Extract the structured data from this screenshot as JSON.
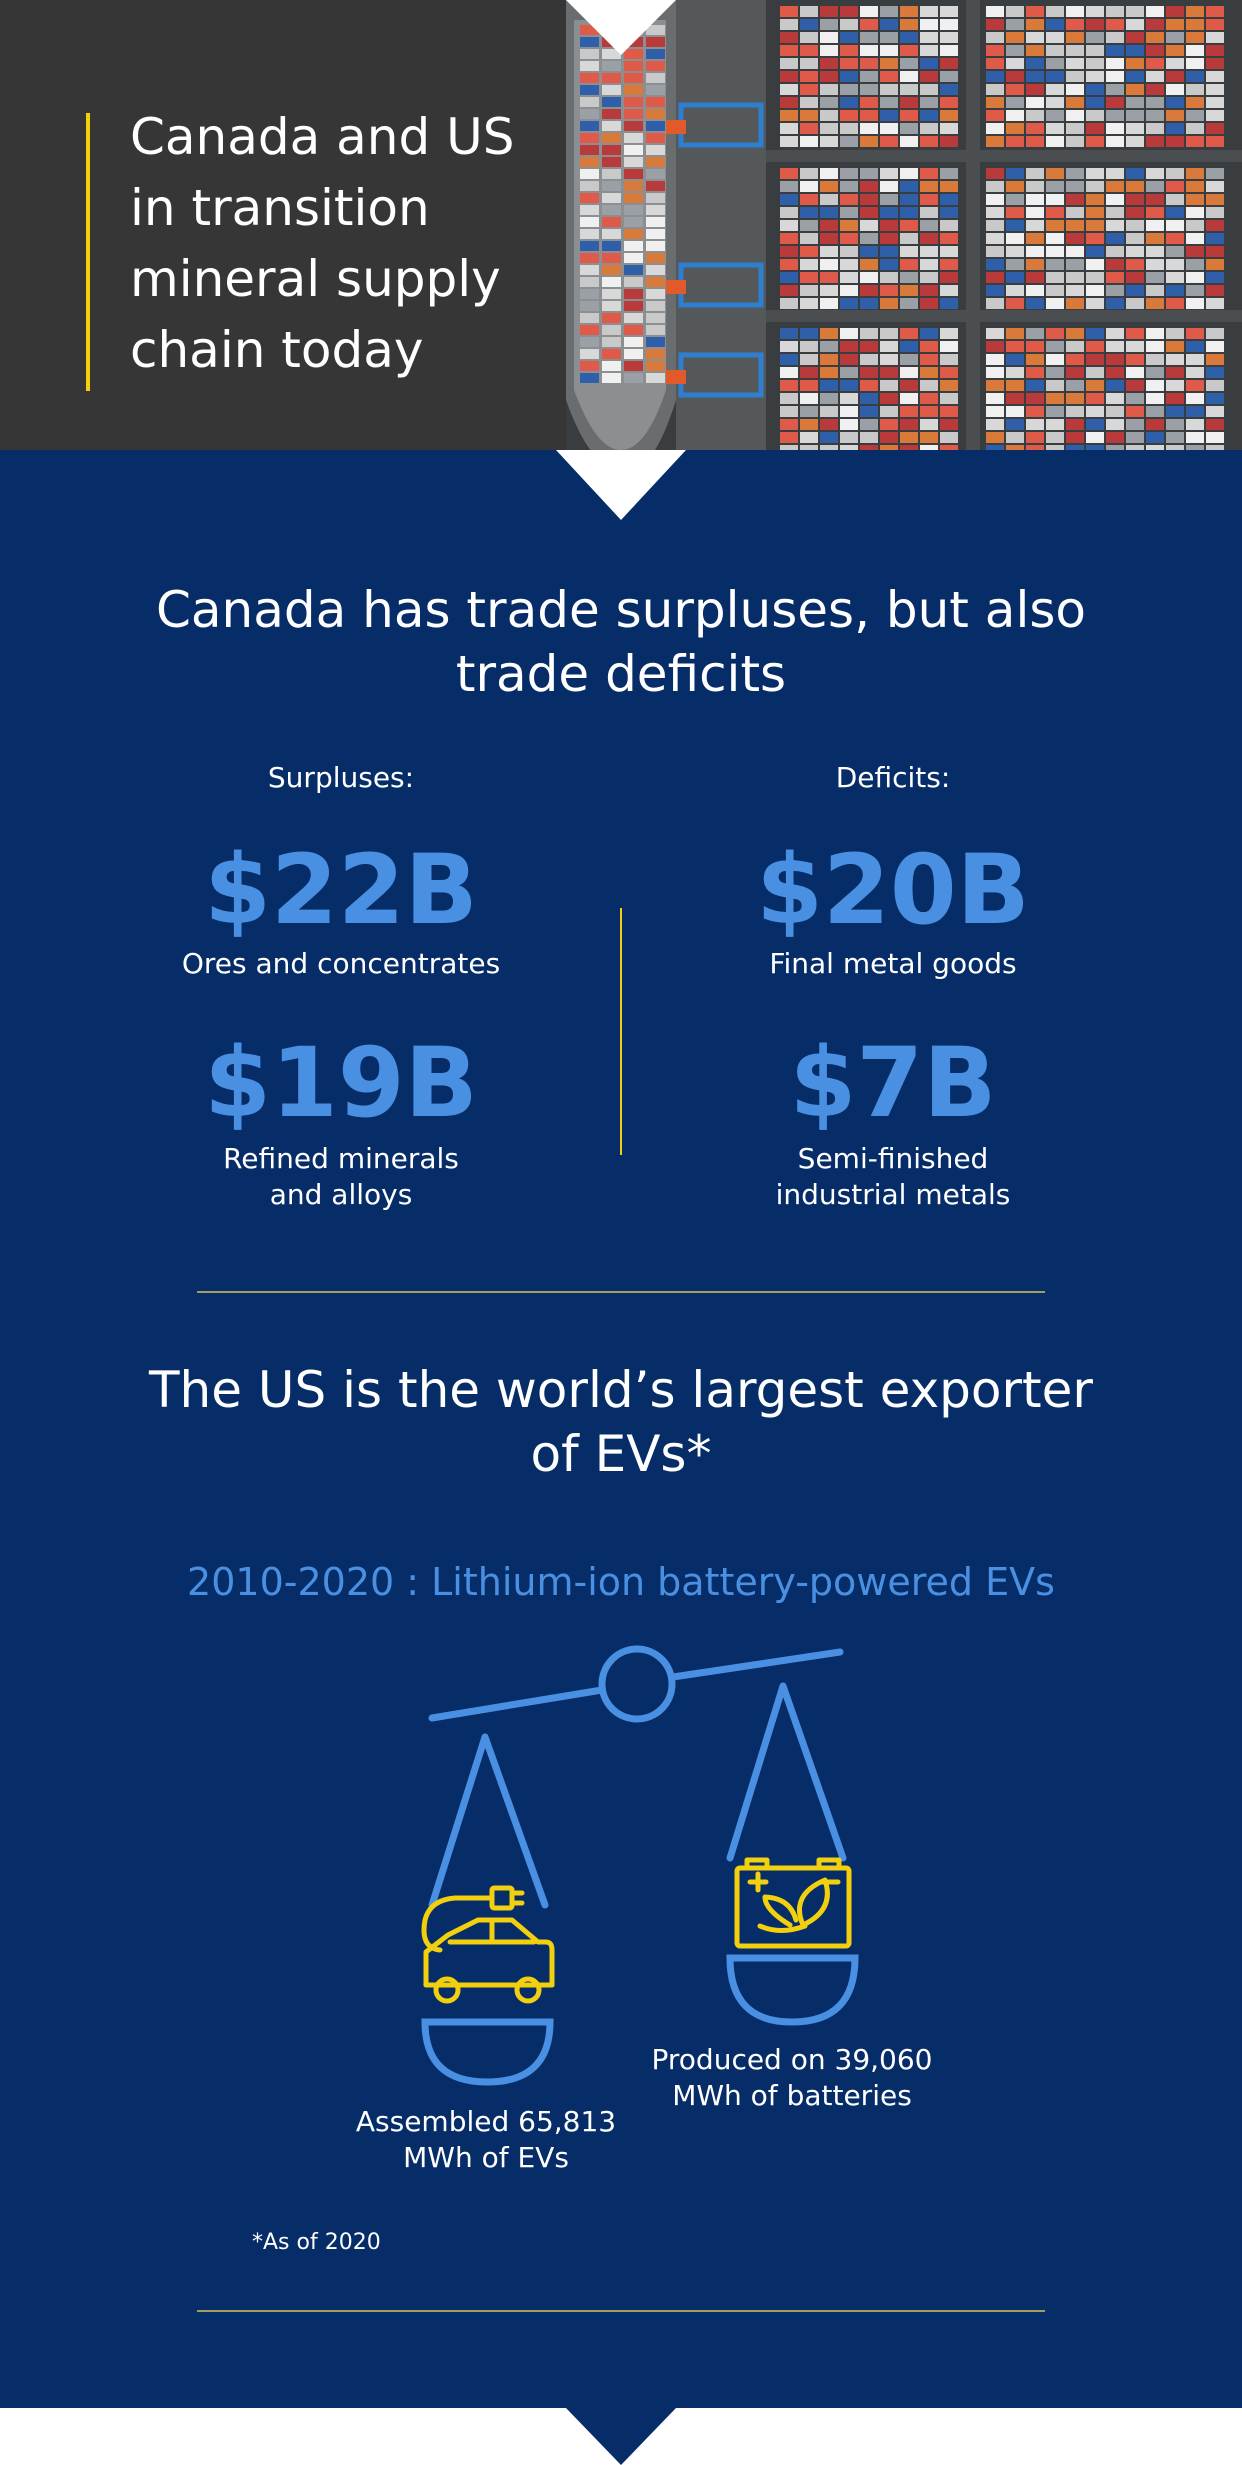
{
  "hero": {
    "title": "Canada and US in transition mineral supply chain today",
    "image_description": "Aerial photo of a container port with a cargo ship and stacked shipping containers"
  },
  "trade": {
    "heading": "Canada has trade surpluses, but also trade deficits",
    "surpluses": {
      "label": "Surpluses:",
      "items": [
        {
          "value": "$22B",
          "caption": "Ores and concentrates"
        },
        {
          "value": "$19B",
          "caption": "Refined minerals and alloys"
        }
      ]
    },
    "deficits": {
      "label": "Deficits:",
      "items": [
        {
          "value": "$20B",
          "caption": "Final metal goods"
        },
        {
          "value": "$7B",
          "caption": "Semi-finished industrial metals"
        }
      ]
    }
  },
  "ev": {
    "heading": "The US is the world’s largest exporter of EVs*",
    "period": "2010-2020 : Lithium-ion battery-powered EVs",
    "left_pan": {
      "icon": "electric-car-icon",
      "caption": "Assembled 65,813 MWh of EVs"
    },
    "right_pan": {
      "icon": "eco-battery-icon",
      "caption": "Produced on 39,060 MWh of batteries"
    },
    "footnote": "*As of 2020"
  },
  "colors": {
    "navy": "#072d69",
    "accent_blue": "#4a90e2",
    "gold": "#f2d00e",
    "hero_dark": "#363636"
  }
}
